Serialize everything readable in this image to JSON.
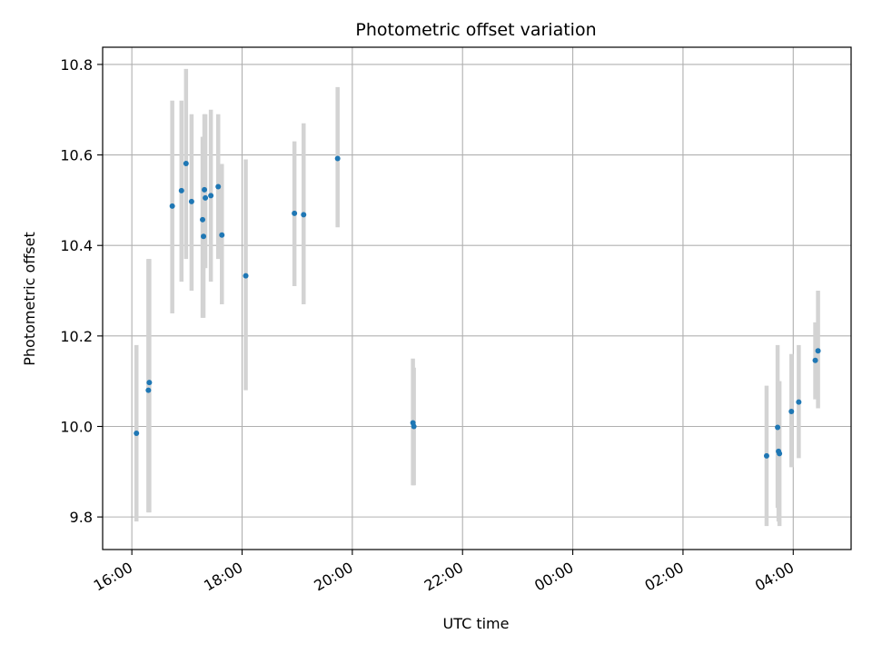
{
  "chart_data": {
    "type": "scatter",
    "title": "Photometric offset variation",
    "xlabel": "UTC time",
    "ylabel": "Photometric offset",
    "x_ticks": [
      {
        "label": "16:00",
        "hours": 16
      },
      {
        "label": "18:00",
        "hours": 18
      },
      {
        "label": "20:00",
        "hours": 20
      },
      {
        "label": "22:00",
        "hours": 22
      },
      {
        "label": "00:00",
        "hours": 24
      },
      {
        "label": "02:00",
        "hours": 26
      },
      {
        "label": "04:00",
        "hours": 28
      }
    ],
    "y_ticks": [
      {
        "label": "9.8",
        "value": 9.8
      },
      {
        "label": "10.0",
        "value": 10.0
      },
      {
        "label": "10.2",
        "value": 10.2
      },
      {
        "label": "10.4",
        "value": 10.4
      },
      {
        "label": "10.6",
        "value": 10.6
      },
      {
        "label": "10.8",
        "value": 10.8
      }
    ],
    "xlim_hours": [
      15.47,
      29.05
    ],
    "ylim": [
      9.728,
      10.838
    ],
    "grid": true,
    "marker_color": "#1f77b4",
    "errorbar_color": "#d3d3d3",
    "points": [
      {
        "time": "16:05",
        "y": 9.985,
        "lo": 9.79,
        "hi": 10.18
      },
      {
        "time": "16:18",
        "y": 10.08,
        "lo": 9.81,
        "hi": 10.37
      },
      {
        "time": "16:19",
        "y": 10.097,
        "lo": 9.81,
        "hi": 10.37
      },
      {
        "time": "16:44",
        "y": 10.487,
        "lo": 10.25,
        "hi": 10.72
      },
      {
        "time": "16:54",
        "y": 10.521,
        "lo": 10.32,
        "hi": 10.72
      },
      {
        "time": "16:59",
        "y": 10.581,
        "lo": 10.37,
        "hi": 10.79
      },
      {
        "time": "17:05",
        "y": 10.497,
        "lo": 10.3,
        "hi": 10.69
      },
      {
        "time": "17:17",
        "y": 10.457,
        "lo": 10.24,
        "hi": 10.64
      },
      {
        "time": "17:18",
        "y": 10.42,
        "lo": 10.24,
        "hi": 10.64
      },
      {
        "time": "17:19",
        "y": 10.523,
        "lo": 10.35,
        "hi": 10.69
      },
      {
        "time": "17:20",
        "y": 10.505,
        "lo": 10.35,
        "hi": 10.69
      },
      {
        "time": "17:26",
        "y": 10.51,
        "lo": 10.32,
        "hi": 10.7
      },
      {
        "time": "17:34",
        "y": 10.53,
        "lo": 10.37,
        "hi": 10.69
      },
      {
        "time": "17:38",
        "y": 10.423,
        "lo": 10.27,
        "hi": 10.58
      },
      {
        "time": "18:04",
        "y": 10.333,
        "lo": 10.08,
        "hi": 10.59
      },
      {
        "time": "18:57",
        "y": 10.471,
        "lo": 10.31,
        "hi": 10.63
      },
      {
        "time": "19:07",
        "y": 10.468,
        "lo": 10.27,
        "hi": 10.67
      },
      {
        "time": "19:44",
        "y": 10.592,
        "lo": 10.44,
        "hi": 10.75
      },
      {
        "time": "21:06",
        "y": 10.008,
        "lo": 9.87,
        "hi": 10.15
      },
      {
        "time": "21:07",
        "y": 10.0,
        "lo": 9.87,
        "hi": 10.13
      },
      {
        "time": "03:31",
        "y": 9.935,
        "lo": 9.78,
        "hi": 10.09
      },
      {
        "time": "03:43",
        "y": 9.998,
        "lo": 9.82,
        "hi": 10.18
      },
      {
        "time": "03:44",
        "y": 9.945,
        "lo": 9.79,
        "hi": 10.1
      },
      {
        "time": "03:45",
        "y": 9.94,
        "lo": 9.78,
        "hi": 10.1
      },
      {
        "time": "03:58",
        "y": 10.033,
        "lo": 9.91,
        "hi": 10.16
      },
      {
        "time": "04:06",
        "y": 10.054,
        "lo": 9.93,
        "hi": 10.18
      },
      {
        "time": "04:24",
        "y": 10.146,
        "lo": 10.06,
        "hi": 10.23
      },
      {
        "time": "04:27",
        "y": 10.167,
        "lo": 10.04,
        "hi": 10.3
      }
    ]
  }
}
